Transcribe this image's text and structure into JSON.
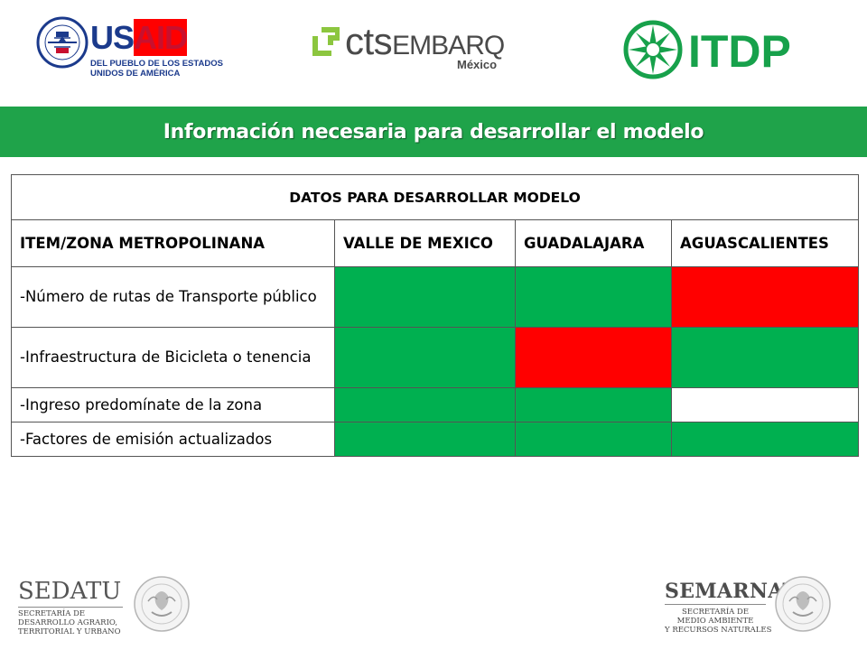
{
  "logos": {
    "usaid": {
      "brand_blue": "US",
      "brand_red": "AID",
      "tagline_line1": "DEL PUEBLO DE LOS ESTADOS",
      "tagline_line2": "UNIDOS DE AMÉRICA",
      "icon": "usaid-seal-icon"
    },
    "cts": {
      "word_small": "cts",
      "word_caps": "EMBARQ",
      "sub": "México",
      "icon": "cts-bracket-icon"
    },
    "itdp": {
      "word": "ITDP",
      "icon": "itdp-star-icon"
    },
    "sedatu": {
      "name": "SEDATU",
      "sub_line1": "SECRETARÍA DE",
      "sub_line2": "DESARROLLO AGRARIO,",
      "sub_line3": "TERRITORIAL Y URBANO",
      "icon": "mexico-coat-of-arms-icon"
    },
    "semarnat": {
      "name": "SEMARNAT",
      "sub_line1": "SECRETARÍA DE",
      "sub_line2": "MEDIO AMBIENTE",
      "sub_line3": "Y RECURSOS NATURALES",
      "icon": "mexico-coat-of-arms-icon"
    }
  },
  "title": "Información necesaria para desarrollar el modelo",
  "table": {
    "caption": "DATOS PARA DESARROLLAR MODELO",
    "headers": [
      "ITEM/ZONA METROPOLINANA",
      "VALLE DE MEXICO",
      "GUADALAJARA",
      "AGUASCALIENTES"
    ],
    "rows": [
      {
        "item": "-Número de rutas de Transporte público",
        "status": [
          "green",
          "green",
          "red"
        ]
      },
      {
        "item": "-Infraestructura de Bicicleta o tenencia",
        "status": [
          "green",
          "red",
          "green"
        ]
      },
      {
        "item": "-Ingreso predomínate de la zona",
        "status": [
          "green",
          "green",
          "white"
        ]
      },
      {
        "item": "-Factores de emisión actualizados",
        "status": [
          "green",
          "green",
          "green"
        ]
      }
    ]
  },
  "colors": {
    "title_bar": "#1fa34a",
    "cell_green": "#00b050",
    "cell_red": "#ff0000",
    "cell_white": "#ffffff",
    "usaid_blue": "#1b3a8c",
    "usaid_red": "#c8102e",
    "itdp_green": "#17a14b"
  }
}
